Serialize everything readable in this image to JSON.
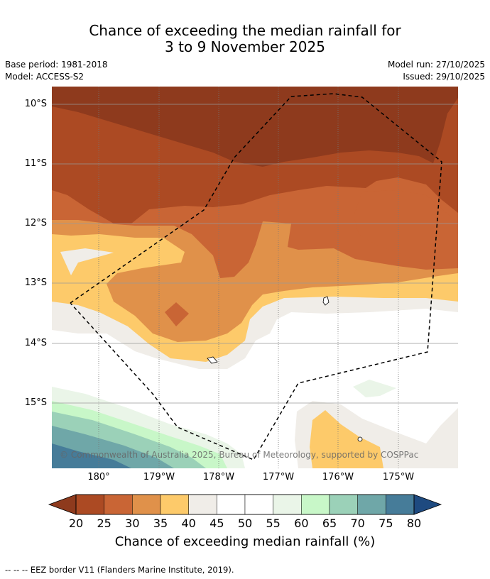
{
  "title_line1": "Chance of exceeding the median rainfall for",
  "title_line2": "3 to 9 November 2025",
  "base_period": "Base period: 1981-2018",
  "model": "Model: ACCESS-S2",
  "model_run": "Model run: 27/10/2025",
  "issued": "Issued: 29/10/2025",
  "copyright": "© Commonwealth of Australia 2025, Bureau of Meteorology, supported by COSPPac",
  "lat_labels": [
    "10°S",
    "11°S",
    "12°S",
    "13°S",
    "14°S",
    "15°S"
  ],
  "lon_labels": [
    "180°",
    "179°W",
    "178°W",
    "177°W",
    "176°W",
    "175°W"
  ],
  "colorbar": {
    "title": "Chance of exceeding median rainfall (%)",
    "ticks": [
      "20",
      "25",
      "30",
      "35",
      "40",
      "45",
      "50",
      "55",
      "60",
      "65",
      "70",
      "75",
      "80"
    ],
    "colors": [
      "#ac4a23",
      "#c96535",
      "#e0914a",
      "#fdca6a",
      "#f0ede8",
      "#ffffff",
      "#ffffff",
      "#eaf5e8",
      "#c8f7c8",
      "#9bd1b8",
      "#6fa7a8",
      "#467c99"
    ],
    "under_color": "#8e3a1d",
    "over_color": "#1e4a80"
  },
  "footnote": "--  --  -- EEZ border V11 (Flanders Marine Institute, 2019)."
}
